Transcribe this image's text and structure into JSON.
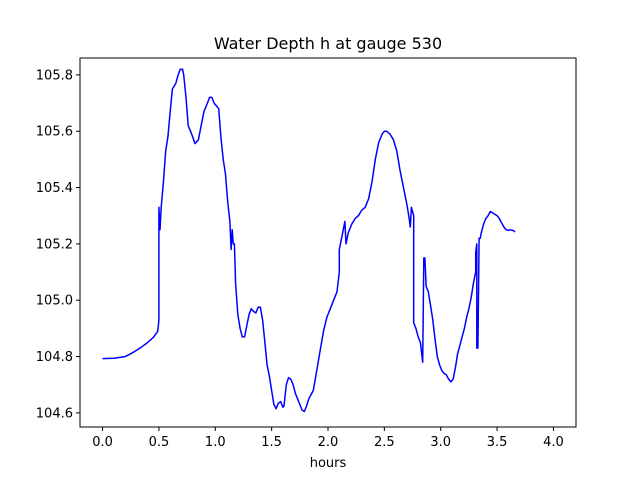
{
  "chart_data": {
    "type": "line",
    "title": "Water Depth h at gauge 530",
    "xlabel": "hours",
    "ylabel": "",
    "xlim": [
      -0.2,
      4.2
    ],
    "ylim": [
      104.55,
      105.86
    ],
    "x_ticks": [
      0.0,
      0.5,
      1.0,
      1.5,
      2.0,
      2.5,
      3.0,
      3.5,
      4.0
    ],
    "x_tick_labels": [
      "0.0",
      "0.5",
      "1.0",
      "1.5",
      "2.0",
      "2.5",
      "3.0",
      "3.5",
      "4.0"
    ],
    "y_ticks": [
      104.6,
      104.8,
      105.0,
      105.2,
      105.4,
      105.6,
      105.8
    ],
    "y_tick_labels": [
      "104.6",
      "104.8",
      "105.0",
      "105.2",
      "105.4",
      "105.6",
      "105.8"
    ],
    "grid": false,
    "series": [
      {
        "color": "#0000ff",
        "points": [
          [
            0.0,
            104.793
          ],
          [
            0.1,
            104.794
          ],
          [
            0.2,
            104.8
          ],
          [
            0.25,
            104.81
          ],
          [
            0.3,
            104.822
          ],
          [
            0.35,
            104.835
          ],
          [
            0.4,
            104.85
          ],
          [
            0.45,
            104.868
          ],
          [
            0.49,
            104.89
          ],
          [
            0.5,
            104.93
          ],
          [
            0.5,
            105.33
          ],
          [
            0.51,
            105.25
          ],
          [
            0.52,
            105.33
          ],
          [
            0.54,
            105.42
          ],
          [
            0.56,
            105.53
          ],
          [
            0.58,
            105.58
          ],
          [
            0.6,
            105.67
          ],
          [
            0.62,
            105.75
          ],
          [
            0.65,
            105.77
          ],
          [
            0.67,
            105.8
          ],
          [
            0.69,
            105.82
          ],
          [
            0.71,
            105.82
          ],
          [
            0.72,
            105.8
          ],
          [
            0.74,
            105.72
          ],
          [
            0.76,
            105.62
          ],
          [
            0.78,
            105.6
          ],
          [
            0.8,
            105.58
          ],
          [
            0.82,
            105.556
          ],
          [
            0.85,
            105.57
          ],
          [
            0.88,
            105.63
          ],
          [
            0.9,
            105.67
          ],
          [
            0.93,
            105.7
          ],
          [
            0.95,
            105.72
          ],
          [
            0.97,
            105.72
          ],
          [
            0.99,
            105.7
          ],
          [
            1.01,
            105.69
          ],
          [
            1.03,
            105.68
          ],
          [
            1.05,
            105.58
          ],
          [
            1.07,
            105.5
          ],
          [
            1.09,
            105.45
          ],
          [
            1.11,
            105.35
          ],
          [
            1.13,
            105.28
          ],
          [
            1.14,
            105.18
          ],
          [
            1.15,
            105.25
          ],
          [
            1.16,
            105.2
          ],
          [
            1.17,
            105.2
          ],
          [
            1.18,
            105.06
          ],
          [
            1.2,
            104.95
          ],
          [
            1.22,
            104.9
          ],
          [
            1.24,
            104.87
          ],
          [
            1.26,
            104.87
          ],
          [
            1.28,
            104.91
          ],
          [
            1.3,
            104.95
          ],
          [
            1.32,
            104.97
          ],
          [
            1.34,
            104.96
          ],
          [
            1.36,
            104.955
          ],
          [
            1.38,
            104.975
          ],
          [
            1.4,
            104.975
          ],
          [
            1.42,
            104.93
          ],
          [
            1.44,
            104.85
          ],
          [
            1.46,
            104.77
          ],
          [
            1.48,
            104.73
          ],
          [
            1.5,
            104.68
          ],
          [
            1.52,
            104.63
          ],
          [
            1.54,
            104.615
          ],
          [
            1.56,
            104.635
          ],
          [
            1.58,
            104.64
          ],
          [
            1.6,
            104.62
          ],
          [
            1.61,
            104.625
          ],
          [
            1.63,
            104.7
          ],
          [
            1.65,
            104.725
          ],
          [
            1.67,
            104.72
          ],
          [
            1.69,
            104.7
          ],
          [
            1.71,
            104.67
          ],
          [
            1.74,
            104.64
          ],
          [
            1.77,
            104.61
          ],
          [
            1.79,
            104.605
          ],
          [
            1.81,
            104.625
          ],
          [
            1.83,
            104.65
          ],
          [
            1.87,
            104.68
          ],
          [
            1.9,
            104.75
          ],
          [
            1.93,
            104.82
          ],
          [
            1.96,
            104.89
          ],
          [
            1.99,
            104.94
          ],
          [
            2.02,
            104.97
          ],
          [
            2.05,
            105.0
          ],
          [
            2.08,
            105.03
          ],
          [
            2.1,
            105.1
          ],
          [
            2.1,
            105.18
          ],
          [
            2.13,
            105.24
          ],
          [
            2.15,
            105.28
          ],
          [
            2.16,
            105.2
          ],
          [
            2.18,
            105.24
          ],
          [
            2.21,
            105.27
          ],
          [
            2.24,
            105.29
          ],
          [
            2.27,
            105.3
          ],
          [
            2.3,
            105.32
          ],
          [
            2.33,
            105.33
          ],
          [
            2.36,
            105.36
          ],
          [
            2.39,
            105.42
          ],
          [
            2.42,
            105.5
          ],
          [
            2.45,
            105.56
          ],
          [
            2.48,
            105.59
          ],
          [
            2.5,
            105.6
          ],
          [
            2.52,
            105.6
          ],
          [
            2.55,
            105.59
          ],
          [
            2.58,
            105.57
          ],
          [
            2.61,
            105.53
          ],
          [
            2.64,
            105.46
          ],
          [
            2.67,
            105.4
          ],
          [
            2.7,
            105.34
          ],
          [
            2.72,
            105.29
          ],
          [
            2.73,
            105.26
          ],
          [
            2.74,
            105.33
          ],
          [
            2.76,
            105.3
          ],
          [
            2.76,
            104.92
          ],
          [
            2.78,
            104.9
          ],
          [
            2.8,
            104.87
          ],
          [
            2.82,
            104.85
          ],
          [
            2.84,
            104.78
          ],
          [
            2.85,
            105.15
          ],
          [
            2.86,
            105.15
          ],
          [
            2.87,
            105.05
          ],
          [
            2.89,
            105.03
          ],
          [
            2.91,
            104.98
          ],
          [
            2.93,
            104.93
          ],
          [
            2.95,
            104.86
          ],
          [
            2.97,
            104.8
          ],
          [
            2.99,
            104.77
          ],
          [
            3.01,
            104.75
          ],
          [
            3.03,
            104.74
          ],
          [
            3.05,
            104.735
          ],
          [
            3.07,
            104.72
          ],
          [
            3.09,
            104.71
          ],
          [
            3.11,
            104.72
          ],
          [
            3.13,
            104.76
          ],
          [
            3.15,
            104.81
          ],
          [
            3.17,
            104.84
          ],
          [
            3.19,
            104.87
          ],
          [
            3.21,
            104.9
          ],
          [
            3.23,
            104.94
          ],
          [
            3.25,
            104.97
          ],
          [
            3.27,
            105.01
          ],
          [
            3.29,
            105.06
          ],
          [
            3.31,
            105.1
          ],
          [
            3.31,
            105.17
          ],
          [
            3.32,
            105.2
          ],
          [
            3.32,
            104.83
          ],
          [
            3.33,
            104.83
          ],
          [
            3.34,
            105.22
          ],
          [
            3.35,
            105.22
          ],
          [
            3.36,
            105.24
          ],
          [
            3.38,
            105.27
          ],
          [
            3.4,
            105.29
          ],
          [
            3.42,
            105.3
          ],
          [
            3.44,
            105.315
          ],
          [
            3.46,
            105.31
          ],
          [
            3.48,
            105.305
          ],
          [
            3.5,
            105.3
          ],
          [
            3.52,
            105.29
          ],
          [
            3.54,
            105.275
          ],
          [
            3.56,
            105.26
          ],
          [
            3.58,
            105.25
          ],
          [
            3.6,
            105.248
          ],
          [
            3.62,
            105.25
          ],
          [
            3.64,
            105.248
          ],
          [
            3.65,
            105.245
          ],
          [
            3.66,
            105.243
          ]
        ]
      }
    ]
  }
}
